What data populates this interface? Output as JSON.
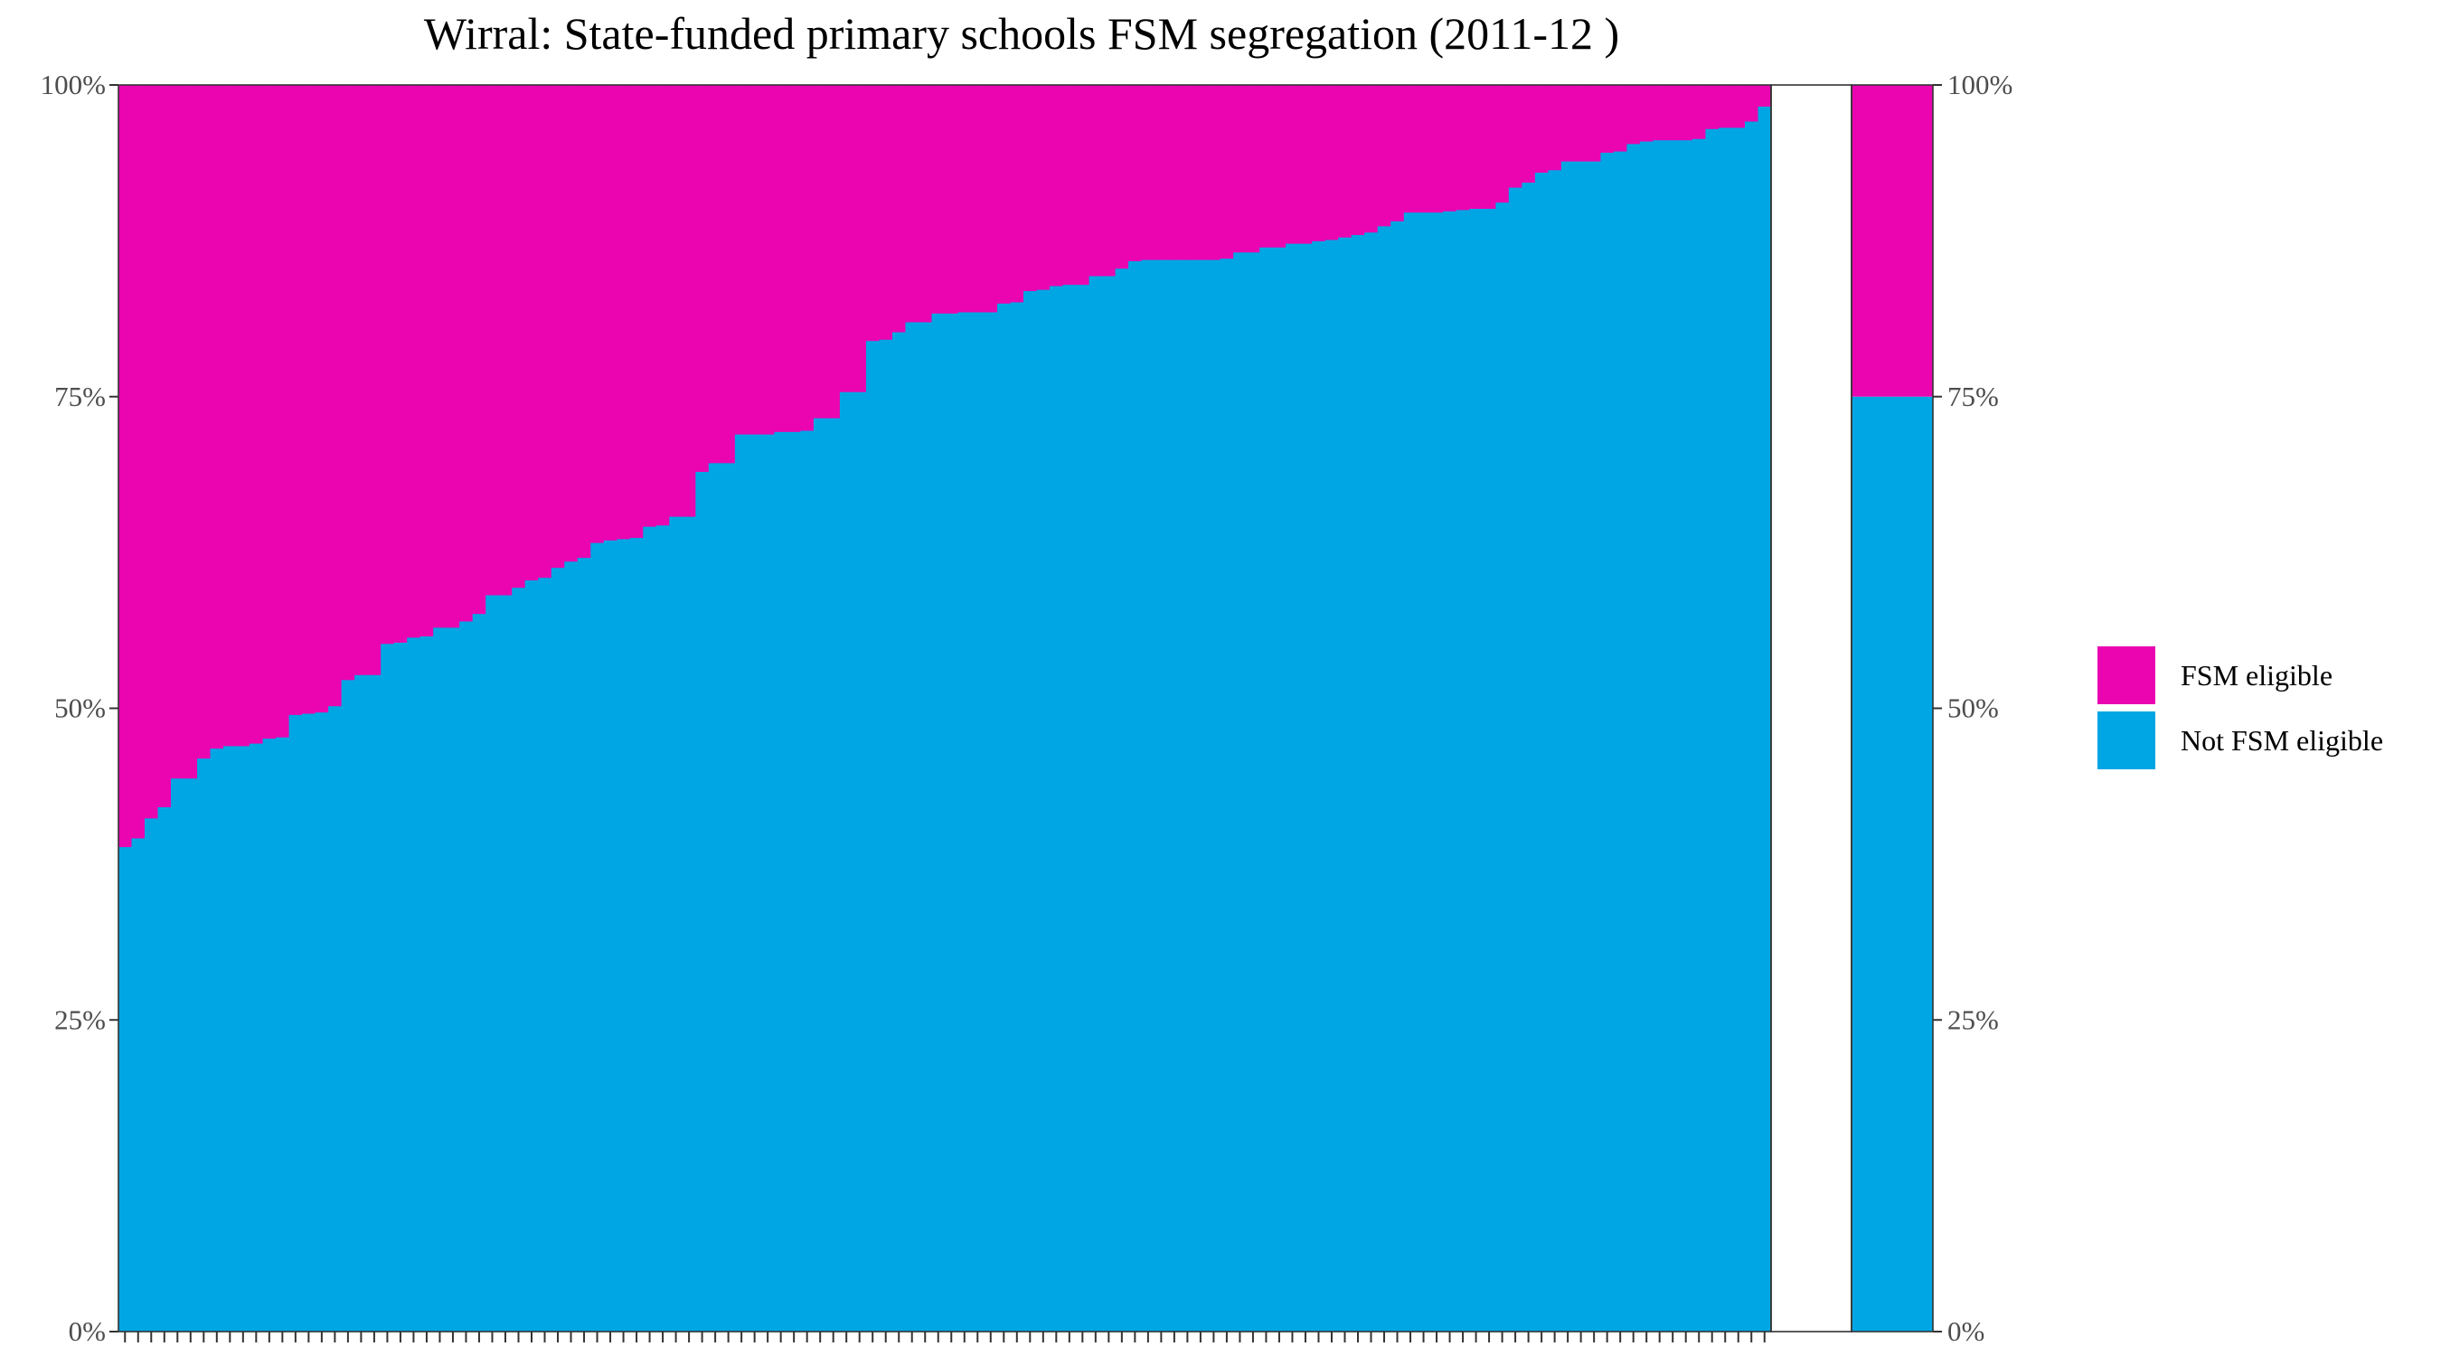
{
  "chart_data": {
    "type": "bar",
    "subtype": "stacked-100-percent",
    "title": "Wirral: State-funded primary schools FSM segregation (2011-12 )",
    "xlabel": "",
    "ylabel": "",
    "ylim": [
      0,
      100
    ],
    "y_ticks": [
      "0%",
      "25%",
      "50%",
      "75%",
      "100%"
    ],
    "grid": false,
    "legend_position": "right",
    "series": [
      {
        "name": "FSM eligible",
        "color": "#ea05b1"
      },
      {
        "name": "Not FSM eligible",
        "color": "#00a6e4"
      }
    ],
    "school_not_fsm_eligible_percent": [
      38.9,
      39.6,
      41.2,
      42.1,
      44.4,
      44.4,
      46.0,
      46.8,
      47.0,
      47.0,
      47.2,
      47.6,
      47.7,
      49.5,
      49.6,
      49.7,
      50.2,
      52.3,
      52.7,
      52.7,
      55.2,
      55.3,
      55.7,
      55.8,
      56.5,
      56.5,
      57.0,
      57.6,
      59.1,
      59.1,
      59.7,
      60.3,
      60.5,
      61.3,
      61.8,
      62.1,
      63.3,
      63.5,
      63.6,
      63.7,
      64.6,
      64.7,
      65.4,
      65.4,
      69.0,
      69.7,
      69.7,
      72.0,
      72.0,
      72.0,
      72.2,
      72.2,
      72.3,
      73.3,
      73.3,
      75.4,
      75.4,
      79.5,
      79.6,
      80.2,
      81.0,
      81.0,
      81.7,
      81.7,
      81.8,
      81.8,
      81.8,
      82.5,
      82.6,
      83.5,
      83.6,
      83.9,
      84.0,
      84.0,
      84.7,
      84.7,
      85.3,
      85.9,
      86.0,
      86.0,
      86.0,
      86.0,
      86.0,
      86.0,
      86.1,
      86.6,
      86.6,
      87.0,
      87.0,
      87.3,
      87.3,
      87.5,
      87.6,
      87.8,
      88.0,
      88.2,
      88.7,
      89.1,
      89.8,
      89.8,
      89.8,
      89.9,
      90.0,
      90.1,
      90.1,
      90.6,
      91.8,
      92.2,
      93.0,
      93.2,
      93.9,
      93.9,
      93.9,
      94.6,
      94.7,
      95.3,
      95.5,
      95.6,
      95.6,
      95.6,
      95.7,
      96.5,
      96.6,
      96.6,
      97.1,
      98.3
    ],
    "overall": {
      "not_fsm_eligible_percent": 75.0,
      "fsm_eligible_percent": 25.0
    }
  }
}
